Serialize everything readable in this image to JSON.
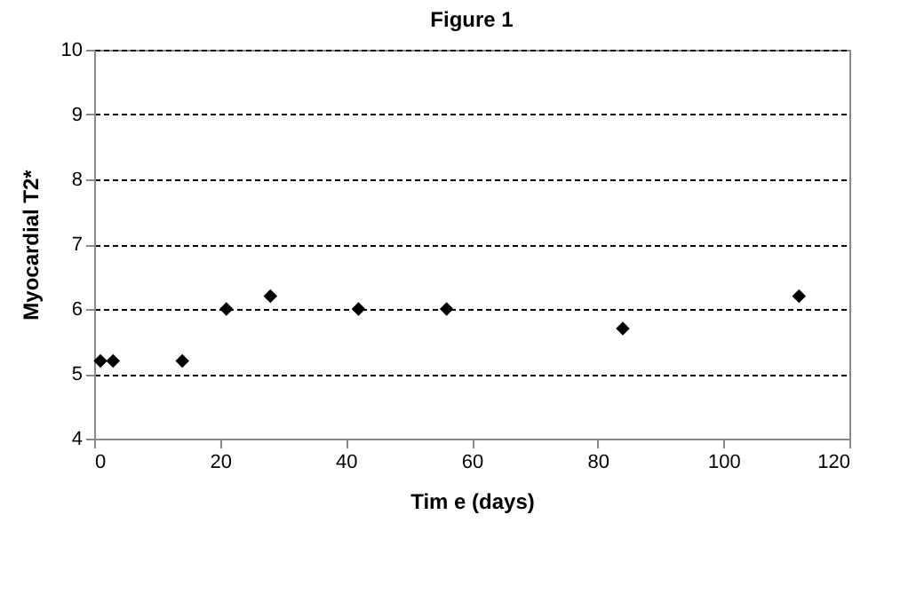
{
  "chart_data": {
    "type": "scatter",
    "title": "Figure 1",
    "xlabel": "Tim e (days)",
    "ylabel": "Myocardial T2*",
    "x": [
      1,
      3,
      14,
      21,
      28,
      42,
      56,
      84,
      112
    ],
    "series": [
      {
        "color": "#000000",
        "values": [
          5.2,
          5.2,
          5.2,
          6.0,
          6.2,
          6.0,
          6.0,
          5.7,
          6.2
        ]
      }
    ],
    "xlim": [
      0,
      120
    ],
    "xticks": [
      0,
      20,
      40,
      60,
      80,
      100,
      120
    ],
    "ylim": [
      4,
      10
    ],
    "yticks": [
      4,
      5,
      6,
      7,
      8,
      9,
      10
    ],
    "grid": "y",
    "marker": "diamond",
    "legend": false
  }
}
